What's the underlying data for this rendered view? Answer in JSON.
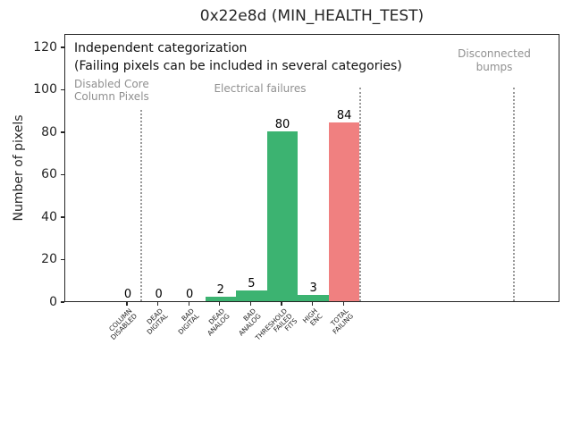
{
  "chart_data": {
    "type": "bar",
    "title": "0x22e8d (MIN_HEALTH_TEST)",
    "xlabel": "",
    "ylabel": "Number of pixels",
    "ylim": [
      0,
      126.3
    ],
    "yticks": [
      0,
      20,
      40,
      60,
      80,
      100,
      120
    ],
    "grid": false,
    "legend": false,
    "categories": [
      "COLUMN\nDISABLED",
      "DEAD\nDIGITAL",
      "BAD\nDIGITAL",
      "DEAD\nANALOG",
      "BAD\nANALOG",
      "THRESHOLD\nFAILED\nFITS",
      "HIGH\nENC",
      "TOTAL\nFAILING"
    ],
    "values": [
      0,
      0,
      0,
      2,
      5,
      80,
      3,
      84
    ],
    "value_labels": [
      "0",
      "0",
      "0",
      "2",
      "5",
      "80",
      "3",
      "84"
    ],
    "bar_colors": [
      "#3cb371",
      "#3cb371",
      "#3cb371",
      "#3cb371",
      "#3cb371",
      "#3cb371",
      "#3cb371",
      "#f08080"
    ],
    "green_color": "#3cb371",
    "red_color": "#f08080",
    "separator_color": "#999999",
    "annotation_gray": "#909090",
    "annotations": {
      "independent": "Independent categorization",
      "note": "(Failing pixels can be included in several categories)",
      "section_disabled": "Disabled Core\nColumn Pixels",
      "section_electrical": "Electrical failures",
      "section_disconnected": "Disconnected\nbumps"
    }
  }
}
